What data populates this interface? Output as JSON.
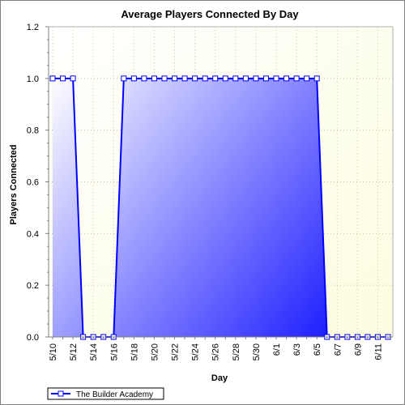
{
  "chart_data": {
    "type": "area",
    "title": "Average Players Connected By Day",
    "xlabel": "Day",
    "ylabel": "Players Connected",
    "ylim": [
      0,
      1.2
    ],
    "yticks": [
      "0.0",
      "0.2",
      "0.4",
      "0.6",
      "0.8",
      "1.0",
      "1.2"
    ],
    "grid": true,
    "legend_position": "bottom-left",
    "x": [
      "5/10",
      "5/11",
      "5/12",
      "5/13",
      "5/14",
      "5/15",
      "5/16",
      "5/17",
      "5/18",
      "5/19",
      "5/20",
      "5/21",
      "5/22",
      "5/23",
      "5/24",
      "5/25",
      "5/26",
      "5/27",
      "5/28",
      "5/29",
      "5/30",
      "5/31",
      "6/1",
      "6/2",
      "6/3",
      "6/4",
      "6/5",
      "6/6",
      "6/7",
      "6/8",
      "6/9",
      "6/10",
      "6/11",
      "6/12"
    ],
    "xtick_labels": [
      "5/10",
      "5/12",
      "5/14",
      "5/16",
      "5/18",
      "5/20",
      "5/22",
      "5/24",
      "5/26",
      "5/28",
      "5/30",
      "6/1",
      "6/3",
      "6/5",
      "6/7",
      "6/9",
      "6/11"
    ],
    "series": [
      {
        "name": "The Builder Academy",
        "values": [
          1,
          1,
          1,
          0,
          0,
          0,
          0,
          1,
          1,
          1,
          1,
          1,
          1,
          1,
          1,
          1,
          1,
          1,
          1,
          1,
          1,
          1,
          1,
          1,
          1,
          1,
          1,
          0,
          0,
          0,
          0,
          0,
          0,
          0
        ]
      }
    ],
    "colors": {
      "plot_background_top": "#fdfde0",
      "plot_background_bottom": "#ffffff",
      "area_light": "#ffffff",
      "area_dark": "#0000ff",
      "line": "#0000ff",
      "grid": "#c8c8a0"
    }
  }
}
